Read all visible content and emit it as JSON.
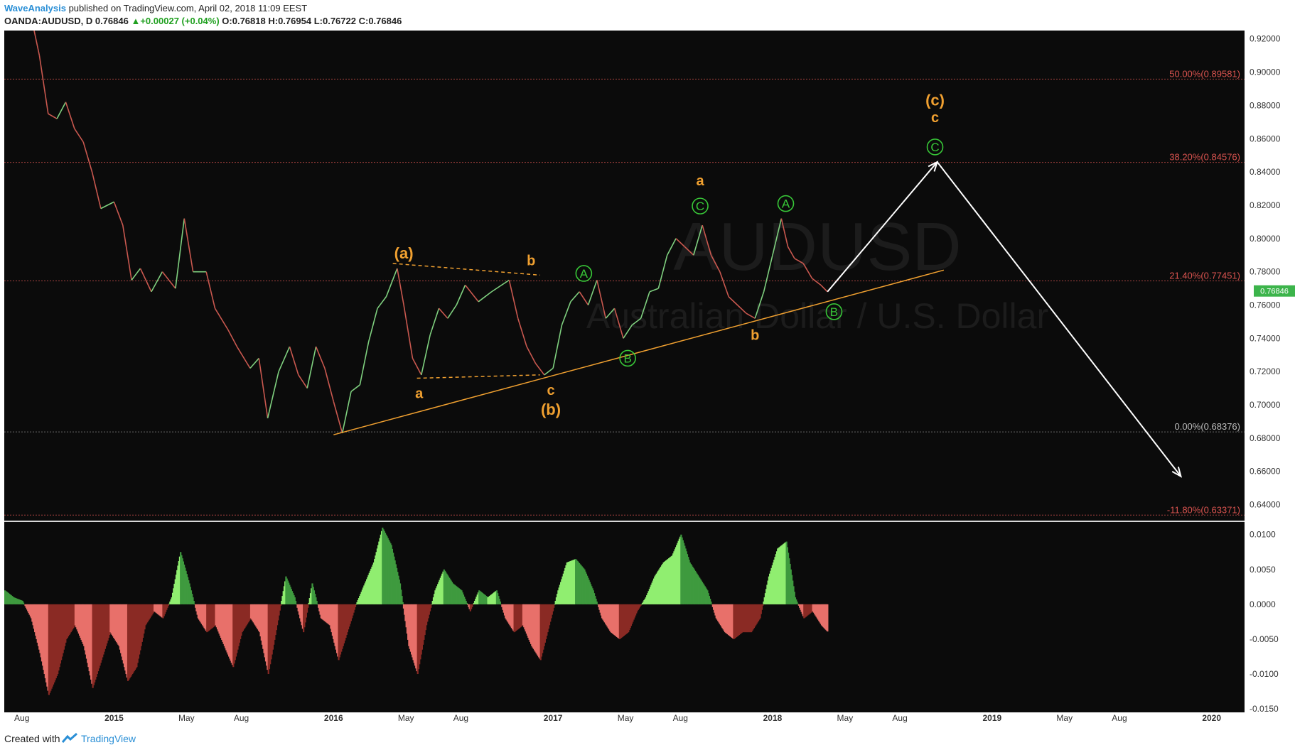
{
  "header": {
    "author": "WaveAnalysis",
    "published": "published on TradingView.com, April 02, 2018 11:09 EEST",
    "symbol": "OANDA:AUDUSD, D",
    "last": "0.76846",
    "change": "+0.00027 (+0.04%)",
    "o_label": "O:",
    "o": "0.76818",
    "h_label": "H:",
    "h": "0.76954",
    "l_label": "L:",
    "l": "0.76722",
    "c_label": "C:",
    "c": "0.76846"
  },
  "footer": {
    "created_with": "Created with",
    "brand": "TradingView"
  },
  "colors": {
    "background": "#0b0b0b",
    "up": "#7fd07f",
    "down": "#c9584f",
    "fib": "#d9534f",
    "annotation": "#f0a030",
    "wave_circle": "#38c838",
    "arrow": "#ffffff",
    "hist_up": "#90ee70",
    "hist_up_dark": "#3f9a3f",
    "hist_down": "#e8706a",
    "hist_down_dark": "#8a2a24",
    "price_tag": "#3cb44b"
  },
  "chart_data": [
    {
      "type": "line",
      "title": "AUDUSD",
      "subtitle": "Australian Dollar / U.S. Dollar",
      "ylim": [
        0.63,
        0.925
      ],
      "yticks": [
        "0.92000",
        "0.90000",
        "0.88000",
        "0.86000",
        "0.84000",
        "0.82000",
        "0.80000",
        "0.78000",
        "0.76000",
        "0.74000",
        "0.72000",
        "0.70000",
        "0.68000",
        "0.66000",
        "0.64000"
      ],
      "ytick_values": [
        0.92,
        0.9,
        0.88,
        0.86,
        0.84,
        0.82,
        0.8,
        0.78,
        0.76,
        0.74,
        0.72,
        0.7,
        0.68,
        0.66,
        0.64
      ],
      "last_price": {
        "label": "0.76846",
        "value": 0.76846
      },
      "xticks": [
        {
          "label": "Aug",
          "t": 2014.58
        },
        {
          "label": "2015",
          "t": 2015.0
        },
        {
          "label": "May",
          "t": 2015.33
        },
        {
          "label": "Aug",
          "t": 2015.58
        },
        {
          "label": "2016",
          "t": 2016.0
        },
        {
          "label": "May",
          "t": 2016.33
        },
        {
          "label": "Aug",
          "t": 2016.58
        },
        {
          "label": "2017",
          "t": 2017.0
        },
        {
          "label": "May",
          "t": 2017.33
        },
        {
          "label": "Aug",
          "t": 2017.58
        },
        {
          "label": "2018",
          "t": 2018.0
        },
        {
          "label": "May",
          "t": 2018.33
        },
        {
          "label": "Aug",
          "t": 2018.58
        },
        {
          "label": "2019",
          "t": 2019.0
        },
        {
          "label": "May",
          "t": 2019.33
        },
        {
          "label": "Aug",
          "t": 2019.58
        },
        {
          "label": "2020",
          "t": 2020.0
        }
      ],
      "price_series": [
        [
          2014.62,
          0.935
        ],
        [
          2014.66,
          0.91
        ],
        [
          2014.7,
          0.875
        ],
        [
          2014.74,
          0.872
        ],
        [
          2014.78,
          0.882
        ],
        [
          2014.82,
          0.866
        ],
        [
          2014.86,
          0.858
        ],
        [
          2014.9,
          0.84
        ],
        [
          2014.94,
          0.818
        ],
        [
          2015.0,
          0.822
        ],
        [
          2015.04,
          0.808
        ],
        [
          2015.08,
          0.775
        ],
        [
          2015.12,
          0.782
        ],
        [
          2015.17,
          0.768
        ],
        [
          2015.22,
          0.78
        ],
        [
          2015.28,
          0.77
        ],
        [
          2015.32,
          0.812
        ],
        [
          2015.36,
          0.78
        ],
        [
          2015.42,
          0.78
        ],
        [
          2015.46,
          0.758
        ],
        [
          2015.52,
          0.745
        ],
        [
          2015.56,
          0.735
        ],
        [
          2015.62,
          0.722
        ],
        [
          2015.66,
          0.728
        ],
        [
          2015.7,
          0.692
        ],
        [
          2015.75,
          0.72
        ],
        [
          2015.8,
          0.735
        ],
        [
          2015.84,
          0.718
        ],
        [
          2015.88,
          0.71
        ],
        [
          2015.92,
          0.735
        ],
        [
          2015.96,
          0.722
        ],
        [
          2016.0,
          0.702
        ],
        [
          2016.04,
          0.683
        ],
        [
          2016.08,
          0.708
        ],
        [
          2016.12,
          0.712
        ],
        [
          2016.16,
          0.738
        ],
        [
          2016.2,
          0.758
        ],
        [
          2016.24,
          0.765
        ],
        [
          2016.29,
          0.782
        ],
        [
          2016.32,
          0.76
        ],
        [
          2016.36,
          0.728
        ],
        [
          2016.4,
          0.718
        ],
        [
          2016.44,
          0.742
        ],
        [
          2016.48,
          0.758
        ],
        [
          2016.52,
          0.752
        ],
        [
          2016.56,
          0.76
        ],
        [
          2016.6,
          0.772
        ],
        [
          2016.66,
          0.762
        ],
        [
          2016.72,
          0.768
        ],
        [
          2016.8,
          0.775
        ],
        [
          2016.84,
          0.752
        ],
        [
          2016.88,
          0.735
        ],
        [
          2016.92,
          0.725
        ],
        [
          2016.96,
          0.718
        ],
        [
          2017.0,
          0.722
        ],
        [
          2017.04,
          0.748
        ],
        [
          2017.08,
          0.762
        ],
        [
          2017.12,
          0.768
        ],
        [
          2017.16,
          0.76
        ],
        [
          2017.2,
          0.775
        ],
        [
          2017.24,
          0.752
        ],
        [
          2017.28,
          0.758
        ],
        [
          2017.32,
          0.74
        ],
        [
          2017.36,
          0.748
        ],
        [
          2017.4,
          0.752
        ],
        [
          2017.44,
          0.768
        ],
        [
          2017.48,
          0.77
        ],
        [
          2017.52,
          0.79
        ],
        [
          2017.56,
          0.8
        ],
        [
          2017.6,
          0.795
        ],
        [
          2017.64,
          0.79
        ],
        [
          2017.68,
          0.808
        ],
        [
          2017.72,
          0.79
        ],
        [
          2017.76,
          0.78
        ],
        [
          2017.8,
          0.765
        ],
        [
          2017.84,
          0.76
        ],
        [
          2017.88,
          0.755
        ],
        [
          2017.92,
          0.752
        ],
        [
          2017.96,
          0.768
        ],
        [
          2018.0,
          0.79
        ],
        [
          2018.04,
          0.812
        ],
        [
          2018.07,
          0.795
        ],
        [
          2018.1,
          0.788
        ],
        [
          2018.14,
          0.785
        ],
        [
          2018.18,
          0.776
        ],
        [
          2018.22,
          0.772
        ],
        [
          2018.25,
          0.768
        ]
      ],
      "fib_levels": [
        {
          "label": "50.00%(0.89581)",
          "value": 0.89581
        },
        {
          "label": "38.20%(0.84576)",
          "value": 0.84576
        },
        {
          "label": "21.40%(0.77451)",
          "value": 0.77451
        },
        {
          "label": "0.00%(0.68376)",
          "value": 0.68376
        },
        {
          "label": "-11.80%(0.63371)",
          "value": 0.63371
        }
      ],
      "trendlines": [
        {
          "from": [
            2016.0,
            0.682
          ],
          "to": [
            2018.78,
            0.781
          ],
          "style": "solid"
        },
        {
          "from": [
            2016.27,
            0.785
          ],
          "to": [
            2016.94,
            0.778
          ],
          "style": "dashed"
        },
        {
          "from": [
            2016.38,
            0.716
          ],
          "to": [
            2016.94,
            0.718
          ],
          "style": "dashed"
        }
      ],
      "projection": [
        [
          2018.25,
          0.768
        ],
        [
          2018.75,
          0.846
        ],
        [
          2019.86,
          0.657
        ]
      ],
      "labels": [
        {
          "text": "(a)",
          "t": 2016.32,
          "y": 0.788,
          "kind": "orange-big"
        },
        {
          "text": "b",
          "t": 2016.9,
          "y": 0.784,
          "kind": "orange"
        },
        {
          "text": "a",
          "t": 2016.39,
          "y": 0.704,
          "kind": "orange"
        },
        {
          "text": "c",
          "t": 2016.99,
          "y": 0.706,
          "kind": "orange"
        },
        {
          "text": "(b)",
          "t": 2016.99,
          "y": 0.694,
          "kind": "orange-big"
        },
        {
          "text": "A",
          "t": 2017.14,
          "y": 0.779,
          "kind": "circle"
        },
        {
          "text": "B",
          "t": 2017.34,
          "y": 0.728,
          "kind": "circle"
        },
        {
          "text": "a",
          "t": 2017.67,
          "y": 0.832,
          "kind": "orange"
        },
        {
          "text": "C",
          "t": 2017.67,
          "y": 0.8195,
          "kind": "circle"
        },
        {
          "text": "A",
          "t": 2018.06,
          "y": 0.821,
          "kind": "circle"
        },
        {
          "text": "b",
          "t": 2017.92,
          "y": 0.739,
          "kind": "orange"
        },
        {
          "text": "B",
          "t": 2018.28,
          "y": 0.756,
          "kind": "circle"
        },
        {
          "text": "(c)",
          "t": 2018.74,
          "y": 0.88,
          "kind": "orange-big"
        },
        {
          "text": "c",
          "t": 2018.74,
          "y": 0.87,
          "kind": "orange"
        },
        {
          "text": "C",
          "t": 2018.74,
          "y": 0.855,
          "kind": "circle"
        }
      ]
    },
    {
      "type": "bar",
      "title": "",
      "ylim": [
        -0.0155,
        0.0115
      ],
      "yticks": [
        "0.0100",
        "0.0050",
        "0.0000",
        "-0.0050",
        "-0.0100",
        "-0.0150"
      ],
      "ytick_values": [
        0.01,
        0.005,
        0.0,
        -0.005,
        -0.01,
        -0.015
      ],
      "osc_series": [
        [
          2014.5,
          0.002
        ],
        [
          2014.54,
          0.001
        ],
        [
          2014.58,
          0.0005
        ],
        [
          2014.62,
          -0.002
        ],
        [
          2014.66,
          -0.007
        ],
        [
          2014.7,
          -0.013
        ],
        [
          2014.74,
          -0.01
        ],
        [
          2014.78,
          -0.005
        ],
        [
          2014.82,
          -0.003
        ],
        [
          2014.86,
          -0.006
        ],
        [
          2014.9,
          -0.012
        ],
        [
          2014.94,
          -0.008
        ],
        [
          2014.98,
          -0.004
        ],
        [
          2015.02,
          -0.006
        ],
        [
          2015.06,
          -0.011
        ],
        [
          2015.1,
          -0.009
        ],
        [
          2015.14,
          -0.003
        ],
        [
          2015.18,
          -0.001
        ],
        [
          2015.22,
          -0.002
        ],
        [
          2015.26,
          0.001
        ],
        [
          2015.3,
          0.0075
        ],
        [
          2015.34,
          0.003
        ],
        [
          2015.38,
          -0.002
        ],
        [
          2015.42,
          -0.004
        ],
        [
          2015.46,
          -0.003
        ],
        [
          2015.5,
          -0.006
        ],
        [
          2015.54,
          -0.009
        ],
        [
          2015.58,
          -0.004
        ],
        [
          2015.62,
          -0.002
        ],
        [
          2015.66,
          -0.004
        ],
        [
          2015.7,
          -0.01
        ],
        [
          2015.74,
          -0.003
        ],
        [
          2015.78,
          0.004
        ],
        [
          2015.82,
          0.001
        ],
        [
          2015.86,
          -0.004
        ],
        [
          2015.9,
          0.003
        ],
        [
          2015.94,
          -0.002
        ],
        [
          2015.98,
          -0.003
        ],
        [
          2016.02,
          -0.008
        ],
        [
          2016.06,
          -0.004
        ],
        [
          2016.1,
          0.0
        ],
        [
          2016.14,
          0.003
        ],
        [
          2016.18,
          0.006
        ],
        [
          2016.22,
          0.011
        ],
        [
          2016.26,
          0.0085
        ],
        [
          2016.3,
          0.003
        ],
        [
          2016.34,
          -0.006
        ],
        [
          2016.38,
          -0.01
        ],
        [
          2016.42,
          -0.003
        ],
        [
          2016.46,
          0.002
        ],
        [
          2016.5,
          0.005
        ],
        [
          2016.54,
          0.003
        ],
        [
          2016.58,
          0.002
        ],
        [
          2016.62,
          -0.001
        ],
        [
          2016.66,
          0.002
        ],
        [
          2016.7,
          0.001
        ],
        [
          2016.74,
          0.002
        ],
        [
          2016.78,
          -0.002
        ],
        [
          2016.82,
          -0.004
        ],
        [
          2016.86,
          -0.003
        ],
        [
          2016.9,
          -0.006
        ],
        [
          2016.94,
          -0.008
        ],
        [
          2016.98,
          -0.003
        ],
        [
          2017.02,
          0.002
        ],
        [
          2017.06,
          0.006
        ],
        [
          2017.1,
          0.0065
        ],
        [
          2017.14,
          0.005
        ],
        [
          2017.18,
          0.002
        ],
        [
          2017.22,
          -0.002
        ],
        [
          2017.26,
          -0.004
        ],
        [
          2017.3,
          -0.005
        ],
        [
          2017.34,
          -0.004
        ],
        [
          2017.38,
          -0.001
        ],
        [
          2017.42,
          0.001
        ],
        [
          2017.46,
          0.004
        ],
        [
          2017.5,
          0.006
        ],
        [
          2017.54,
          0.007
        ],
        [
          2017.58,
          0.01
        ],
        [
          2017.62,
          0.006
        ],
        [
          2017.66,
          0.004
        ],
        [
          2017.7,
          0.002
        ],
        [
          2017.74,
          -0.002
        ],
        [
          2017.78,
          -0.004
        ],
        [
          2017.82,
          -0.005
        ],
        [
          2017.86,
          -0.004
        ],
        [
          2017.9,
          -0.004
        ],
        [
          2017.94,
          -0.002
        ],
        [
          2017.98,
          0.004
        ],
        [
          2018.02,
          0.008
        ],
        [
          2018.06,
          0.009
        ],
        [
          2018.1,
          0.001
        ],
        [
          2018.14,
          -0.002
        ],
        [
          2018.18,
          -0.001
        ],
        [
          2018.22,
          -0.003
        ],
        [
          2018.25,
          -0.004
        ]
      ]
    }
  ]
}
